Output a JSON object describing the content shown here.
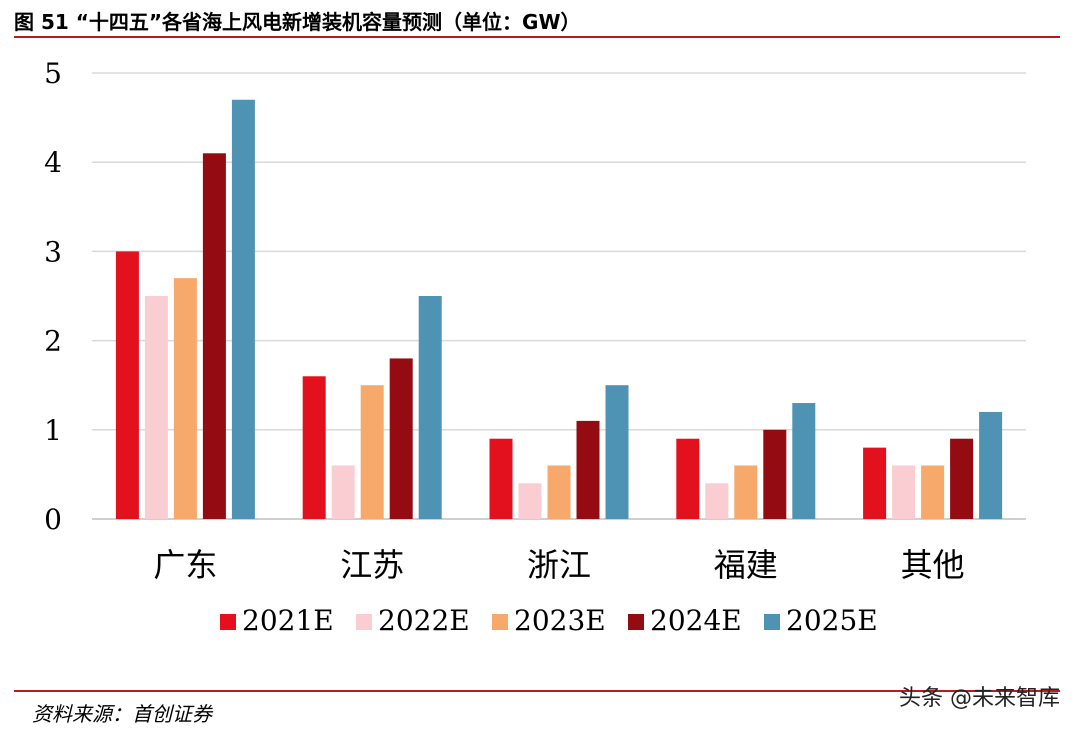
{
  "figure_title": "图 51 “十四五”各省海上风电新增装机容量预测（单位：GW）",
  "source_text": "资料来源：首创证券",
  "watermark_text": "头条 @未来智库",
  "colors": {
    "rule": "#b81c1c",
    "grid": "#d9d9d9",
    "s2021": "#e3101e",
    "s2022": "#f9cdd2",
    "s2023": "#f7a96b",
    "s2024": "#940c12",
    "s2025": "#4f93b4"
  },
  "chart_data": {
    "type": "bar",
    "title": "",
    "xlabel": "",
    "ylabel": "",
    "ylim": [
      0,
      5
    ],
    "yticks": [
      "0",
      "1",
      "2",
      "3",
      "4",
      "5"
    ],
    "grid": true,
    "legend_position": "bottom",
    "categories": [
      "广东",
      "江苏",
      "浙江",
      "福建",
      "其他"
    ],
    "series": [
      {
        "name": "2021E",
        "values": [
          3.0,
          1.6,
          0.9,
          0.9,
          0.8
        ],
        "color": "#e3101e"
      },
      {
        "name": "2022E",
        "values": [
          2.5,
          0.6,
          0.4,
          0.4,
          0.6
        ],
        "color": "#f9cdd2"
      },
      {
        "name": "2023E",
        "values": [
          2.7,
          1.5,
          0.6,
          0.6,
          0.6
        ],
        "color": "#f7a96b"
      },
      {
        "name": "2024E",
        "values": [
          4.1,
          1.8,
          1.1,
          1.0,
          0.9
        ],
        "color": "#940c12"
      },
      {
        "name": "2025E",
        "values": [
          4.7,
          2.5,
          1.5,
          1.3,
          1.2
        ],
        "color": "#4f93b4"
      }
    ]
  }
}
